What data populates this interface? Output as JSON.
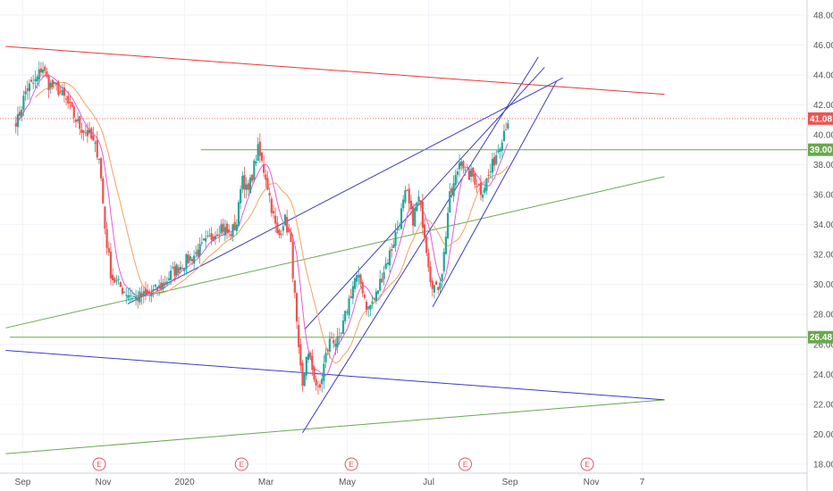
{
  "chart_data": {
    "type": "candlestick",
    "title": "",
    "xlabel": "",
    "ylabel": "",
    "ylim": [
      17.4,
      49.0
    ],
    "y_ticks": [
      "18.00",
      "20.00",
      "22.00",
      "24.00",
      "26.00",
      "28.00",
      "30.00",
      "32.00",
      "34.00",
      "36.00",
      "38.00",
      "40.00",
      "42.00",
      "44.00",
      "46.00",
      "48.00"
    ],
    "x_labels": [
      {
        "label": "Sep",
        "t": 0.12
      },
      {
        "label": "Nov",
        "t": 2.1
      },
      {
        "label": "2020",
        "t": 4.1
      },
      {
        "label": "Mar",
        "t": 6.1
      },
      {
        "label": "May",
        "t": 8.1
      },
      {
        "label": "Jul",
        "t": 10.1
      },
      {
        "label": "Sep",
        "t": 12.1
      },
      {
        "label": "Nov",
        "t": 14.1
      },
      {
        "label": "7",
        "t": 15.35
      }
    ],
    "earnings_markers": {
      "label": "E",
      "t": [
        2.0,
        5.5,
        8.2,
        11.0,
        14.0
      ]
    },
    "last_price": {
      "value": 41.08,
      "label": "41.08",
      "color": "#ef5350"
    },
    "price_levels": [
      {
        "value": 39.0,
        "label": "39.00",
        "color": "#6aa84f",
        "t_start": 4.5
      },
      {
        "value": 26.48,
        "label": "26.48",
        "color": "#6aa84f",
        "t_start": -0.2
      }
    ],
    "close_path": [
      [
        0.0,
        41.0
      ],
      [
        0.2,
        43.0
      ],
      [
        0.45,
        43.6
      ],
      [
        0.6,
        44.6
      ],
      [
        0.75,
        43.4
      ],
      [
        1.0,
        43.0
      ],
      [
        1.2,
        42.2
      ],
      [
        1.5,
        40.6
      ],
      [
        1.75,
        40.0
      ],
      [
        2.0,
        38.6
      ],
      [
        2.15,
        33.5
      ],
      [
        2.3,
        30.5
      ],
      [
        2.6,
        29.6
      ],
      [
        2.9,
        29.1
      ],
      [
        3.2,
        29.3
      ],
      [
        3.5,
        29.8
      ],
      [
        3.8,
        30.8
      ],
      [
        4.1,
        31.5
      ],
      [
        4.4,
        32.1
      ],
      [
        4.7,
        33.0
      ],
      [
        5.0,
        33.9
      ],
      [
        5.2,
        33.3
      ],
      [
        5.4,
        34.2
      ],
      [
        5.5,
        37.5
      ],
      [
        5.65,
        36.0
      ],
      [
        5.9,
        39.0
      ],
      [
        6.1,
        37.2
      ],
      [
        6.25,
        35.0
      ],
      [
        6.4,
        33.0
      ],
      [
        6.55,
        34.5
      ],
      [
        6.7,
        33.0
      ],
      [
        6.8,
        29.5
      ],
      [
        6.9,
        25.5
      ],
      [
        7.0,
        23.0
      ],
      [
        7.1,
        25.5
      ],
      [
        7.25,
        24.3
      ],
      [
        7.4,
        22.6
      ],
      [
        7.55,
        25.0
      ],
      [
        7.7,
        26.5
      ],
      [
        7.9,
        26.0
      ],
      [
        8.1,
        28.5
      ],
      [
        8.3,
        30.5
      ],
      [
        8.45,
        30.0
      ],
      [
        8.6,
        28.3
      ],
      [
        8.8,
        29.2
      ],
      [
        9.0,
        31.0
      ],
      [
        9.2,
        32.5
      ],
      [
        9.4,
        34.5
      ],
      [
        9.55,
        36.2
      ],
      [
        9.7,
        34.2
      ],
      [
        9.85,
        35.8
      ],
      [
        10.0,
        33.5
      ],
      [
        10.15,
        30.4
      ],
      [
        10.3,
        29.5
      ],
      [
        10.45,
        31.2
      ],
      [
        10.6,
        35.6
      ],
      [
        10.75,
        36.9
      ],
      [
        10.9,
        38.7
      ],
      [
        11.0,
        37.4
      ],
      [
        11.2,
        37.2
      ],
      [
        11.4,
        36.2
      ],
      [
        11.6,
        37.4
      ],
      [
        11.8,
        39.0
      ],
      [
        11.95,
        40.3
      ],
      [
        12.05,
        41.0
      ]
    ],
    "candle_range": [
      -0.05,
      12.05
    ],
    "ma_fast_color": "#e85bd8",
    "ma_slow_color": "#f4a261",
    "candle_up_color": "#26a69a",
    "candle_down_color": "#ef5350",
    "trendlines": [
      {
        "name": "resistance-red",
        "color": "#e53935",
        "points": [
          [
            -0.3,
            45.9
          ],
          [
            15.9,
            42.7
          ]
        ]
      },
      {
        "name": "support-green-mid",
        "color": "#6aa84f",
        "points": [
          [
            -0.3,
            27.1
          ],
          [
            15.9,
            37.2
          ]
        ]
      },
      {
        "name": "support-green-low",
        "color": "#6aa84f",
        "points": [
          [
            -0.3,
            18.7
          ],
          [
            15.9,
            22.3
          ]
        ]
      },
      {
        "name": "blue-lower-descending",
        "color": "#3b3bc4",
        "points": [
          [
            -0.3,
            25.6
          ],
          [
            15.9,
            22.3
          ]
        ]
      },
      {
        "name": "blue-rising-wide",
        "color": "#3b3bc4",
        "points": [
          [
            2.7,
            28.7
          ],
          [
            13.4,
            43.8
          ]
        ]
      },
      {
        "name": "blue-channel-lower",
        "color": "#3b3bc4",
        "points": [
          [
            7.0,
            20.1
          ],
          [
            12.8,
            45.2
          ]
        ]
      },
      {
        "name": "blue-channel-upper",
        "color": "#3b3bc4",
        "points": [
          [
            7.05,
            27.0
          ],
          [
            12.95,
            44.5
          ]
        ]
      },
      {
        "name": "blue-channel-right",
        "color": "#3b3bc4",
        "points": [
          [
            10.2,
            28.5
          ],
          [
            13.25,
            43.6
          ]
        ]
      }
    ]
  }
}
